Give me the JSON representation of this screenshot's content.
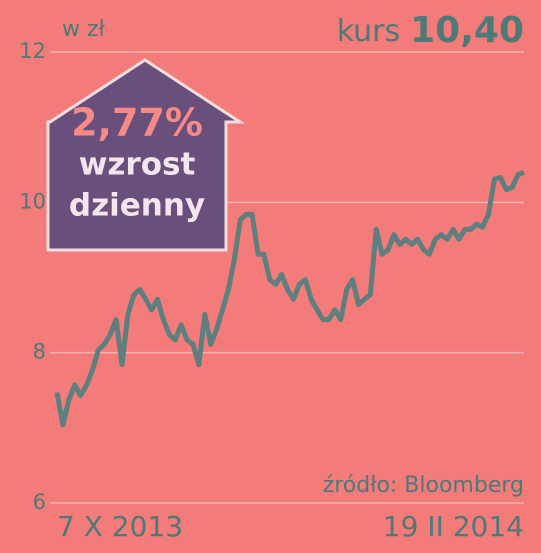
{
  "chart_data": {
    "type": "line",
    "unit_label": "w zł",
    "headline_label": "kurs",
    "headline_value": "10,40",
    "badge": {
      "change": "2,77%",
      "line1": "wzrost",
      "line2": "dzienny"
    },
    "source": "źródło: Bloomberg",
    "categories": [
      "7 X 2013",
      null,
      null,
      null,
      null,
      null,
      null,
      null,
      null,
      null,
      null,
      null,
      null,
      null,
      null,
      null,
      null,
      null,
      null,
      null,
      null,
      null,
      null,
      null,
      null,
      null,
      null,
      null,
      null,
      null,
      null,
      null,
      null,
      null,
      null,
      null,
      null,
      null,
      null,
      null,
      null,
      null,
      null,
      null,
      null,
      null,
      null,
      null,
      null,
      null,
      null,
      null,
      null,
      null,
      null,
      null,
      null,
      null,
      null,
      null,
      null,
      null,
      null,
      null,
      null,
      null,
      null,
      null,
      null,
      null,
      null,
      null,
      null,
      null,
      null,
      null,
      null,
      null,
      null,
      "19 II 2014"
    ],
    "series": [
      {
        "color": "#5e7f7e",
        "values": [
          7.47,
          7.04,
          7.37,
          7.57,
          7.43,
          7.57,
          7.77,
          8.04,
          8.11,
          8.24,
          8.44,
          7.84,
          8.51,
          8.77,
          8.84,
          8.71,
          8.57,
          8.71,
          8.44,
          8.24,
          8.17,
          8.37,
          8.17,
          8.11,
          7.84,
          8.51,
          8.11,
          8.31,
          8.57,
          8.84,
          9.24,
          9.77,
          9.84,
          9.84,
          9.31,
          9.31,
          8.97,
          8.91,
          9.04,
          8.84,
          8.71,
          8.91,
          8.97,
          8.71,
          8.57,
          8.44,
          8.44,
          8.57,
          8.44,
          8.84,
          8.97,
          8.64,
          8.71,
          8.77,
          9.64,
          9.31,
          9.37,
          9.57,
          9.44,
          9.51,
          9.44,
          9.51,
          9.37,
          9.31,
          9.51,
          9.57,
          9.51,
          9.64,
          9.51,
          9.64,
          9.64,
          9.71,
          9.67,
          9.84,
          10.31,
          10.33,
          10.17,
          10.2,
          10.37,
          10.4
        ]
      }
    ],
    "ylim": [
      6,
      12
    ],
    "yticks": [
      6,
      8,
      10,
      12
    ],
    "grid": true
  }
}
